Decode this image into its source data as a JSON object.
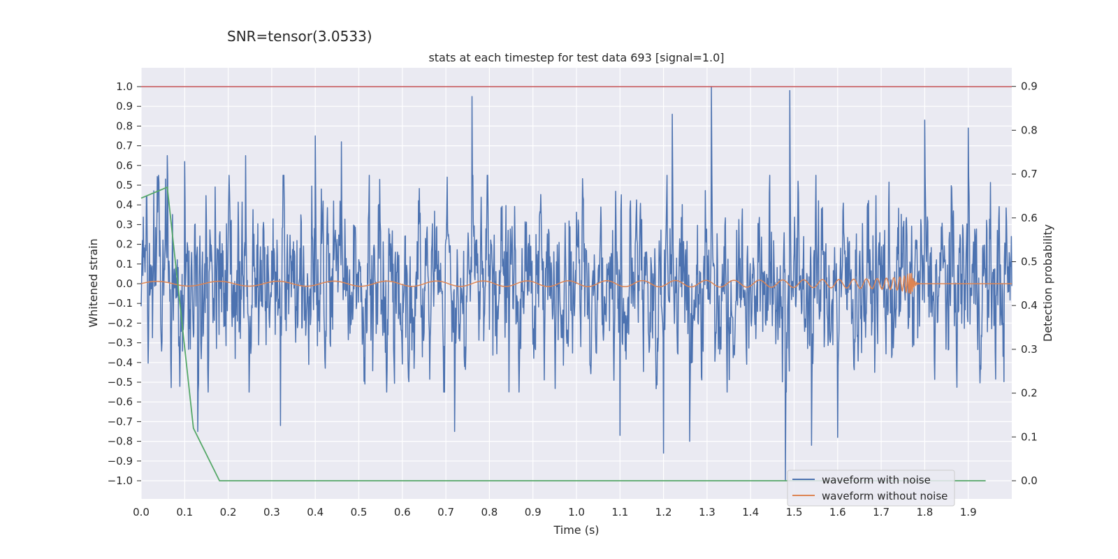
{
  "suptitle": "SNR=tensor(3.0533)",
  "chart_data": {
    "type": "line",
    "title": "stats at each timestep for test data 693 [signal=1.0]",
    "xlabel": "Time (s)",
    "ylabel": "Whitened strain",
    "y2label": "Detection probability",
    "xlim": [
      0.0,
      2.0
    ],
    "ylim": [
      -1.1,
      1.1
    ],
    "y2lim": [
      -0.04,
      0.94
    ],
    "xticks": [
      "0.0",
      "0.1",
      "0.2",
      "0.3",
      "0.4",
      "0.5",
      "0.6",
      "0.7",
      "0.8",
      "0.9",
      "1.0",
      "1.1",
      "1.2",
      "1.3",
      "1.4",
      "1.5",
      "1.6",
      "1.7",
      "1.8",
      "1.9"
    ],
    "xtick_values": [
      0.0,
      0.1,
      0.2,
      0.3,
      0.4,
      0.5,
      0.6,
      0.7,
      0.8,
      0.9,
      1.0,
      1.1,
      1.2,
      1.3,
      1.4,
      1.5,
      1.6,
      1.7,
      1.8,
      1.9
    ],
    "yticks": [
      "1.0",
      "0.9",
      "0.8",
      "0.7",
      "0.6",
      "0.5",
      "0.4",
      "0.3",
      "0.2",
      "0.1",
      "0.0",
      "−0.1",
      "−0.2",
      "−0.3",
      "−0.4",
      "−0.5",
      "−0.6",
      "−0.7",
      "−0.8",
      "−0.9",
      "−1.0"
    ],
    "ytick_values": [
      1.0,
      0.9,
      0.8,
      0.7,
      0.6,
      0.5,
      0.4,
      0.3,
      0.2,
      0.1,
      0.0,
      -0.1,
      -0.2,
      -0.3,
      -0.4,
      -0.5,
      -0.6,
      -0.7,
      -0.8,
      -0.9,
      -1.0
    ],
    "y2ticks": [
      "0.9",
      "0.8",
      "0.7",
      "0.6",
      "0.5",
      "0.4",
      "0.3",
      "0.2",
      "0.1",
      "0.0"
    ],
    "y2tick_values": [
      0.9,
      0.8,
      0.7,
      0.6,
      0.5,
      0.4,
      0.3,
      0.2,
      0.1,
      0.0
    ],
    "reference_line": {
      "y": 1.0,
      "color": "#c44e52"
    },
    "series": [
      {
        "name": "waveform with noise",
        "color": "#4c72b0",
        "description": "noisy whitened strain, roughly uniform amplitude about ±0.4 with spikes up to 1.0 near t=1.31 and down to -1.0 near t=1.48",
        "noise_amplitude": 0.35,
        "spikes": [
          [
            0.06,
            0.65
          ],
          [
            0.1,
            0.62
          ],
          [
            0.13,
            -0.75
          ],
          [
            0.24,
            0.65
          ],
          [
            0.32,
            -0.72
          ],
          [
            0.4,
            0.75
          ],
          [
            0.46,
            0.72
          ],
          [
            0.76,
            0.95
          ],
          [
            0.72,
            -0.75
          ],
          [
            1.1,
            -0.77
          ],
          [
            1.2,
            -0.86
          ],
          [
            1.22,
            0.86
          ],
          [
            1.26,
            -0.8
          ],
          [
            1.31,
            1.0
          ],
          [
            1.48,
            -1.0
          ],
          [
            1.49,
            0.98
          ],
          [
            1.54,
            -0.82
          ],
          [
            1.6,
            -0.78
          ],
          [
            1.8,
            0.83
          ],
          [
            1.9,
            0.79
          ]
        ]
      },
      {
        "name": "waveform without noise",
        "color": "#dd8452",
        "description": "chirp signal growing in frequency and amplitude, merger near t=1.77, flat after ~1.79",
        "merger_time": 1.77,
        "peak_amplitude": 0.1
      },
      {
        "name": "Detection probability",
        "color": "#55a868",
        "axis": "right",
        "x": [
          0.0,
          0.06,
          0.12,
          0.18,
          0.25,
          1.94
        ],
        "values": [
          0.645,
          0.67,
          0.12,
          0.0,
          0.0,
          0.0
        ]
      }
    ],
    "legend": {
      "location": "lower-right",
      "entries": [
        "waveform with noise",
        "waveform without noise"
      ]
    }
  }
}
